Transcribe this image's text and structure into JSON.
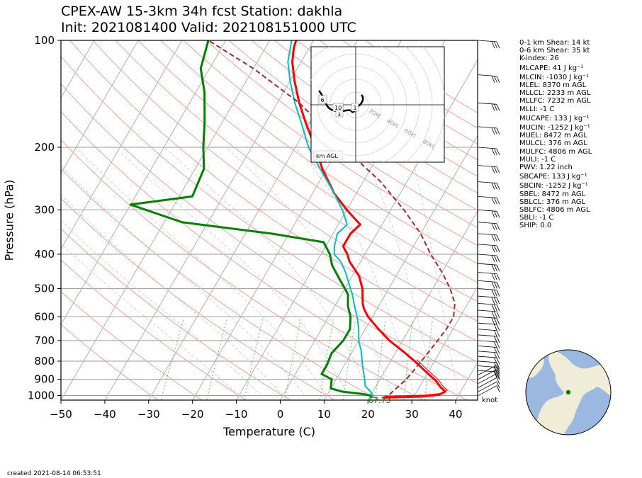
{
  "title_line1": "CPEX-AW 15-3km  34h fcst  Station: dakhla",
  "title_line2": "Init: 2021081400  Valid: 202108151000 UTC",
  "created": "created 2021-08-14 06:53:51",
  "units_label": "knot",
  "stats": [
    "0-1 km Shear: 14 kt",
    "0-6 km Shear: 35 kt",
    "K-index: 26",
    "MLCAPE: 41 J kg⁻¹",
    "MLCIN: -1030 J kg⁻¹",
    "MLEL: 8370 m AGL",
    "MLLCL: 2233 m AGL",
    "MLLFC: 7232 m AGL",
    "MLLI: -1 C",
    "MUCAPE: 133 J kg⁻¹",
    "MUCIN: -1252 J kg⁻¹",
    "MUEL: 8472 m AGL",
    "MULCL: 376 m AGL",
    "MULFC: 4806 m AGL",
    "MULI: -1 C",
    "PWV: 1.22 inch",
    "SBCAPE: 133 J kg⁻¹",
    "SBCIN: -1252 J kg⁻¹",
    "SBEL: 8472 m AGL",
    "SBLCL: 376 m AGL",
    "SBLFC: 4806 m AGL",
    "SBLI: -1 C",
    "SHIP: 0.0"
  ],
  "colors": {
    "temperature": "#ff0000",
    "dewpoint": "#008000",
    "wetbulb": "#00bfc4",
    "parcel": "#a52a2a",
    "isotherm": "#b0b0b0",
    "dry_adiabat": "#f4a0a0",
    "moist_adiabat": "#c8c8c8",
    "mixing_ratio": "#66bb66",
    "ocean": "#9ab8e0",
    "land": "#efecd8"
  },
  "hodograph": {
    "ring_labels": [
      "20kt",
      "40kt",
      "60kt",
      "80kt"
    ],
    "height_labels": [
      "6",
      "10",
      "1",
      "3"
    ],
    "legend": "km AGL"
  },
  "surface_label": "67.73",
  "chart_data": {
    "type": "line",
    "xlabel": "Temperature (C)",
    "ylabel": "Pressure (hPa)",
    "xlim": [
      -50,
      45
    ],
    "ylim": [
      1030,
      100
    ],
    "yscale": "log",
    "xticks": [
      -50,
      -40,
      -30,
      -20,
      -10,
      0,
      10,
      20,
      30,
      40
    ],
    "yticks": [
      100,
      200,
      300,
      400,
      500,
      600,
      700,
      800,
      900,
      1000
    ],
    "grid": true,
    "series": [
      {
        "key": "temperature",
        "points": [
          [
            1014,
            23
          ],
          [
            1006,
            32
          ],
          [
            995,
            35.5
          ],
          [
            975,
            36.5
          ],
          [
            950,
            35
          ],
          [
            910,
            33
          ],
          [
            850,
            29
          ],
          [
            800,
            25.5
          ],
          [
            750,
            21.5
          ],
          [
            700,
            17
          ],
          [
            650,
            13
          ],
          [
            600,
            9
          ],
          [
            570,
            7
          ],
          [
            550,
            6
          ],
          [
            500,
            4
          ],
          [
            460,
            1.5
          ],
          [
            420,
            -2.5
          ],
          [
            400,
            -4
          ],
          [
            380,
            -6
          ],
          [
            350,
            -6
          ],
          [
            330,
            -5
          ],
          [
            300,
            -10
          ],
          [
            270,
            -15
          ],
          [
            230,
            -21
          ],
          [
            200,
            -25.5
          ],
          [
            170,
            -31
          ],
          [
            150,
            -35
          ],
          [
            130,
            -39
          ],
          [
            115,
            -42
          ],
          [
            105,
            -43.5
          ],
          [
            100,
            -44
          ]
        ]
      },
      {
        "key": "dewpoint",
        "points": [
          [
            1014,
            20.5
          ],
          [
            1000,
            20
          ],
          [
            990,
            18
          ],
          [
            975,
            13
          ],
          [
            955,
            10
          ],
          [
            930,
            9.5
          ],
          [
            900,
            9
          ],
          [
            870,
            6
          ],
          [
            820,
            6
          ],
          [
            760,
            5.5
          ],
          [
            700,
            6.5
          ],
          [
            650,
            6.5
          ],
          [
            600,
            5
          ],
          [
            560,
            3
          ],
          [
            520,
            1.5
          ],
          [
            500,
            0
          ],
          [
            470,
            -2.5
          ],
          [
            430,
            -6
          ],
          [
            400,
            -8
          ],
          [
            370,
            -11
          ],
          [
            350,
            -24
          ],
          [
            325,
            -46
          ],
          [
            290,
            -60
          ],
          [
            275,
            -47
          ],
          [
            230,
            -48
          ],
          [
            200,
            -51
          ],
          [
            170,
            -54
          ],
          [
            140,
            -58
          ],
          [
            120,
            -62
          ],
          [
            100,
            -64
          ]
        ]
      },
      {
        "key": "wetbulb",
        "points": [
          [
            1014,
            21
          ],
          [
            1000,
            20.5
          ],
          [
            975,
            19.5
          ],
          [
            940,
            17.5
          ],
          [
            900,
            16.5
          ],
          [
            850,
            15
          ],
          [
            800,
            13.5
          ],
          [
            750,
            12
          ],
          [
            700,
            10
          ],
          [
            650,
            8.5
          ],
          [
            600,
            6.5
          ],
          [
            560,
            4.5
          ],
          [
            520,
            2.5
          ],
          [
            480,
            0
          ],
          [
            450,
            -2
          ],
          [
            420,
            -4.5
          ],
          [
            400,
            -7
          ],
          [
            380,
            -8
          ],
          [
            350,
            -9
          ],
          [
            330,
            -8
          ],
          [
            300,
            -11
          ],
          [
            270,
            -15
          ],
          [
            230,
            -21.5
          ],
          [
            200,
            -27
          ],
          [
            170,
            -32
          ],
          [
            150,
            -36
          ],
          [
            130,
            -40
          ],
          [
            115,
            -43
          ],
          [
            100,
            -45
          ]
        ]
      },
      {
        "key": "parcel",
        "points": [
          [
            1014,
            23
          ],
          [
            1000,
            24
          ],
          [
            975,
            24.5
          ],
          [
            950,
            25
          ],
          [
            900,
            26
          ],
          [
            850,
            26.5
          ],
          [
            800,
            27
          ],
          [
            750,
            27.5
          ],
          [
            700,
            28
          ],
          [
            650,
            28.5
          ],
          [
            600,
            28.5
          ],
          [
            550,
            27
          ],
          [
            500,
            24
          ],
          [
            450,
            20
          ],
          [
            400,
            15
          ],
          [
            350,
            10
          ],
          [
            300,
            3
          ],
          [
            250,
            -6
          ],
          [
            200,
            -19
          ],
          [
            150,
            -35
          ],
          [
            120,
            -50
          ],
          [
            100,
            -64
          ]
        ]
      }
    ]
  }
}
